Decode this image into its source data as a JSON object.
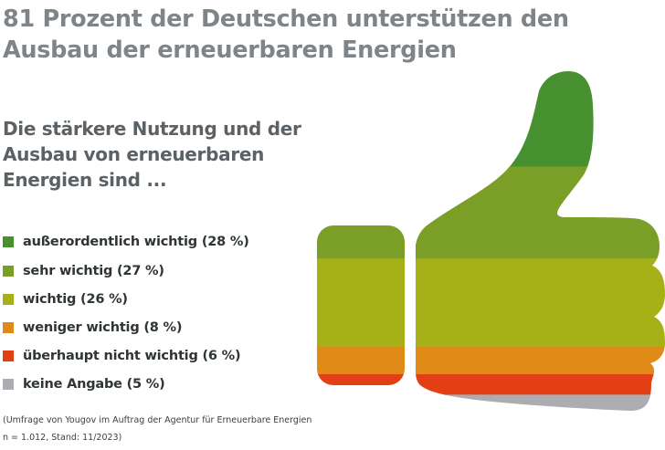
{
  "header": {
    "title_line1": "81 Prozent der Deutschen unterstützen den",
    "title_line2": "Ausbau der erneuerbaren Energien"
  },
  "question": {
    "line1": "Die stärkere Nutzung und der",
    "line2": "Ausbau von erneuerbaren",
    "line3": "Energien sind ..."
  },
  "source": {
    "line1": "(Umfrage von Yougov im Auftrag der Agentur für Erneuerbare Energien",
    "line2": "n = 1.012, Stand: 11/2023)"
  },
  "chart_data": {
    "type": "pie",
    "representation": "stacked pictogram (thumbs-up icon divided into horizontal colour bands)",
    "title": "81 Prozent der Deutschen unterstützen den Ausbau der erneuerbaren Energien",
    "subtitle": "Die stärkere Nutzung und der Ausbau von erneuerbaren Energien sind ...",
    "unit": "%",
    "legend_position": "left",
    "categories": [
      "außerordentlich wichtig",
      "sehr wichtig",
      "wichtig",
      "weniger wichtig",
      "überhaupt nicht wichtig",
      "keine Angabe"
    ],
    "values": [
      28,
      27,
      26,
      8,
      6,
      5
    ],
    "colors": [
      "#46902f",
      "#7b9e27",
      "#a6b118",
      "#e08b18",
      "#e23f14",
      "#acadb0"
    ],
    "legend_labels": [
      "außerordentlich wichtig (28 %)",
      "sehr wichtig (27 %)",
      "wichtig (26 %)",
      "weniger wichtig (8 %)",
      "überhaupt nicht wichtig (6 %)",
      "keine Angabe (5 %)"
    ],
    "annotation": "(Umfrage von Yougov im Auftrag der Agentur für Erneuerbare Energien n = 1.012, Stand: 11/2023)"
  }
}
